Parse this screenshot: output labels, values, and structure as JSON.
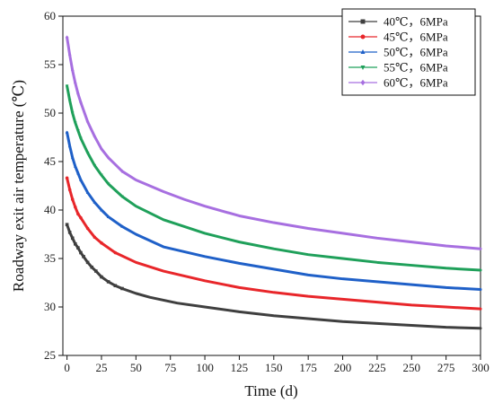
{
  "chart_data": {
    "type": "line",
    "xlabel": "Time (d)",
    "ylabel": "Roadway exit air temperature (℃)",
    "xlim": [
      -3,
      300
    ],
    "ylim": [
      25,
      60
    ],
    "xticks": [
      0,
      25,
      50,
      75,
      100,
      125,
      150,
      175,
      200,
      225,
      250,
      275,
      300
    ],
    "yticks": [
      25,
      30,
      35,
      40,
      45,
      50,
      55,
      60
    ],
    "grid": false,
    "legend_position": "top-right",
    "series": [
      {
        "name": "40℃，6MPa",
        "color": "#3f3f3f",
        "marker": "square",
        "x": [
          0,
          2,
          4,
          6,
          8,
          10,
          12,
          15,
          18,
          21,
          25,
          30,
          35,
          40,
          50,
          60,
          70,
          80,
          100,
          125,
          150,
          175,
          200,
          225,
          250,
          275,
          300
        ],
        "y": [
          38.5,
          37.7,
          37.1,
          36.5,
          36.1,
          35.6,
          35.2,
          34.6,
          34.1,
          33.7,
          33.1,
          32.6,
          32.2,
          31.9,
          31.4,
          31.0,
          30.7,
          30.4,
          30.0,
          29.5,
          29.1,
          28.8,
          28.5,
          28.3,
          28.1,
          27.9,
          27.8
        ]
      },
      {
        "name": "45℃，6MPa",
        "color": "#e8262a",
        "marker": "circle",
        "x": [
          0,
          2,
          4,
          6,
          8,
          10,
          15,
          20,
          25,
          35,
          50,
          70,
          100,
          125,
          150,
          175,
          200,
          225,
          250,
          275,
          300
        ],
        "y": [
          43.3,
          42.1,
          41.1,
          40.3,
          39.6,
          39.2,
          38.1,
          37.2,
          36.6,
          35.6,
          34.6,
          33.7,
          32.7,
          32.0,
          31.5,
          31.1,
          30.8,
          30.5,
          30.2,
          30.0,
          29.8
        ]
      },
      {
        "name": "50℃，6MPa",
        "color": "#1f60c8",
        "marker": "triangle",
        "x": [
          0,
          2,
          4,
          6,
          8,
          10,
          15,
          20,
          25,
          30,
          40,
          50,
          70,
          100,
          125,
          150,
          175,
          200,
          225,
          250,
          275,
          300
        ],
        "y": [
          48.0,
          46.6,
          45.4,
          44.5,
          43.8,
          43.1,
          41.8,
          40.8,
          40.0,
          39.3,
          38.3,
          37.5,
          36.2,
          35.2,
          34.5,
          33.9,
          33.3,
          32.9,
          32.6,
          32.3,
          32.0,
          31.8
        ]
      },
      {
        "name": "55℃，6MPa",
        "color": "#1fa05a",
        "marker": "triangle-down",
        "x": [
          0,
          2,
          4,
          6,
          8,
          10,
          15,
          20,
          25,
          30,
          40,
          50,
          70,
          100,
          125,
          150,
          175,
          200,
          225,
          250,
          275,
          300
        ],
        "y": [
          52.8,
          51.3,
          50.0,
          49.0,
          48.2,
          47.4,
          45.9,
          44.6,
          43.6,
          42.7,
          41.4,
          40.4,
          39.0,
          37.6,
          36.7,
          36.0,
          35.4,
          35.0,
          34.6,
          34.3,
          34.0,
          33.8
        ]
      },
      {
        "name": "60℃，6MPa",
        "color": "#a76fe0",
        "marker": "diamond",
        "x": [
          0,
          2,
          4,
          6,
          8,
          10,
          15,
          20,
          25,
          30,
          40,
          50,
          70,
          85,
          100,
          125,
          150,
          175,
          200,
          225,
          250,
          275,
          300
        ],
        "y": [
          57.8,
          56.0,
          54.4,
          53.1,
          52.0,
          51.1,
          49.1,
          47.6,
          46.3,
          45.4,
          44.0,
          43.1,
          41.9,
          41.1,
          40.4,
          39.4,
          38.7,
          38.1,
          37.6,
          37.1,
          36.7,
          36.3,
          36.0
        ]
      }
    ]
  }
}
